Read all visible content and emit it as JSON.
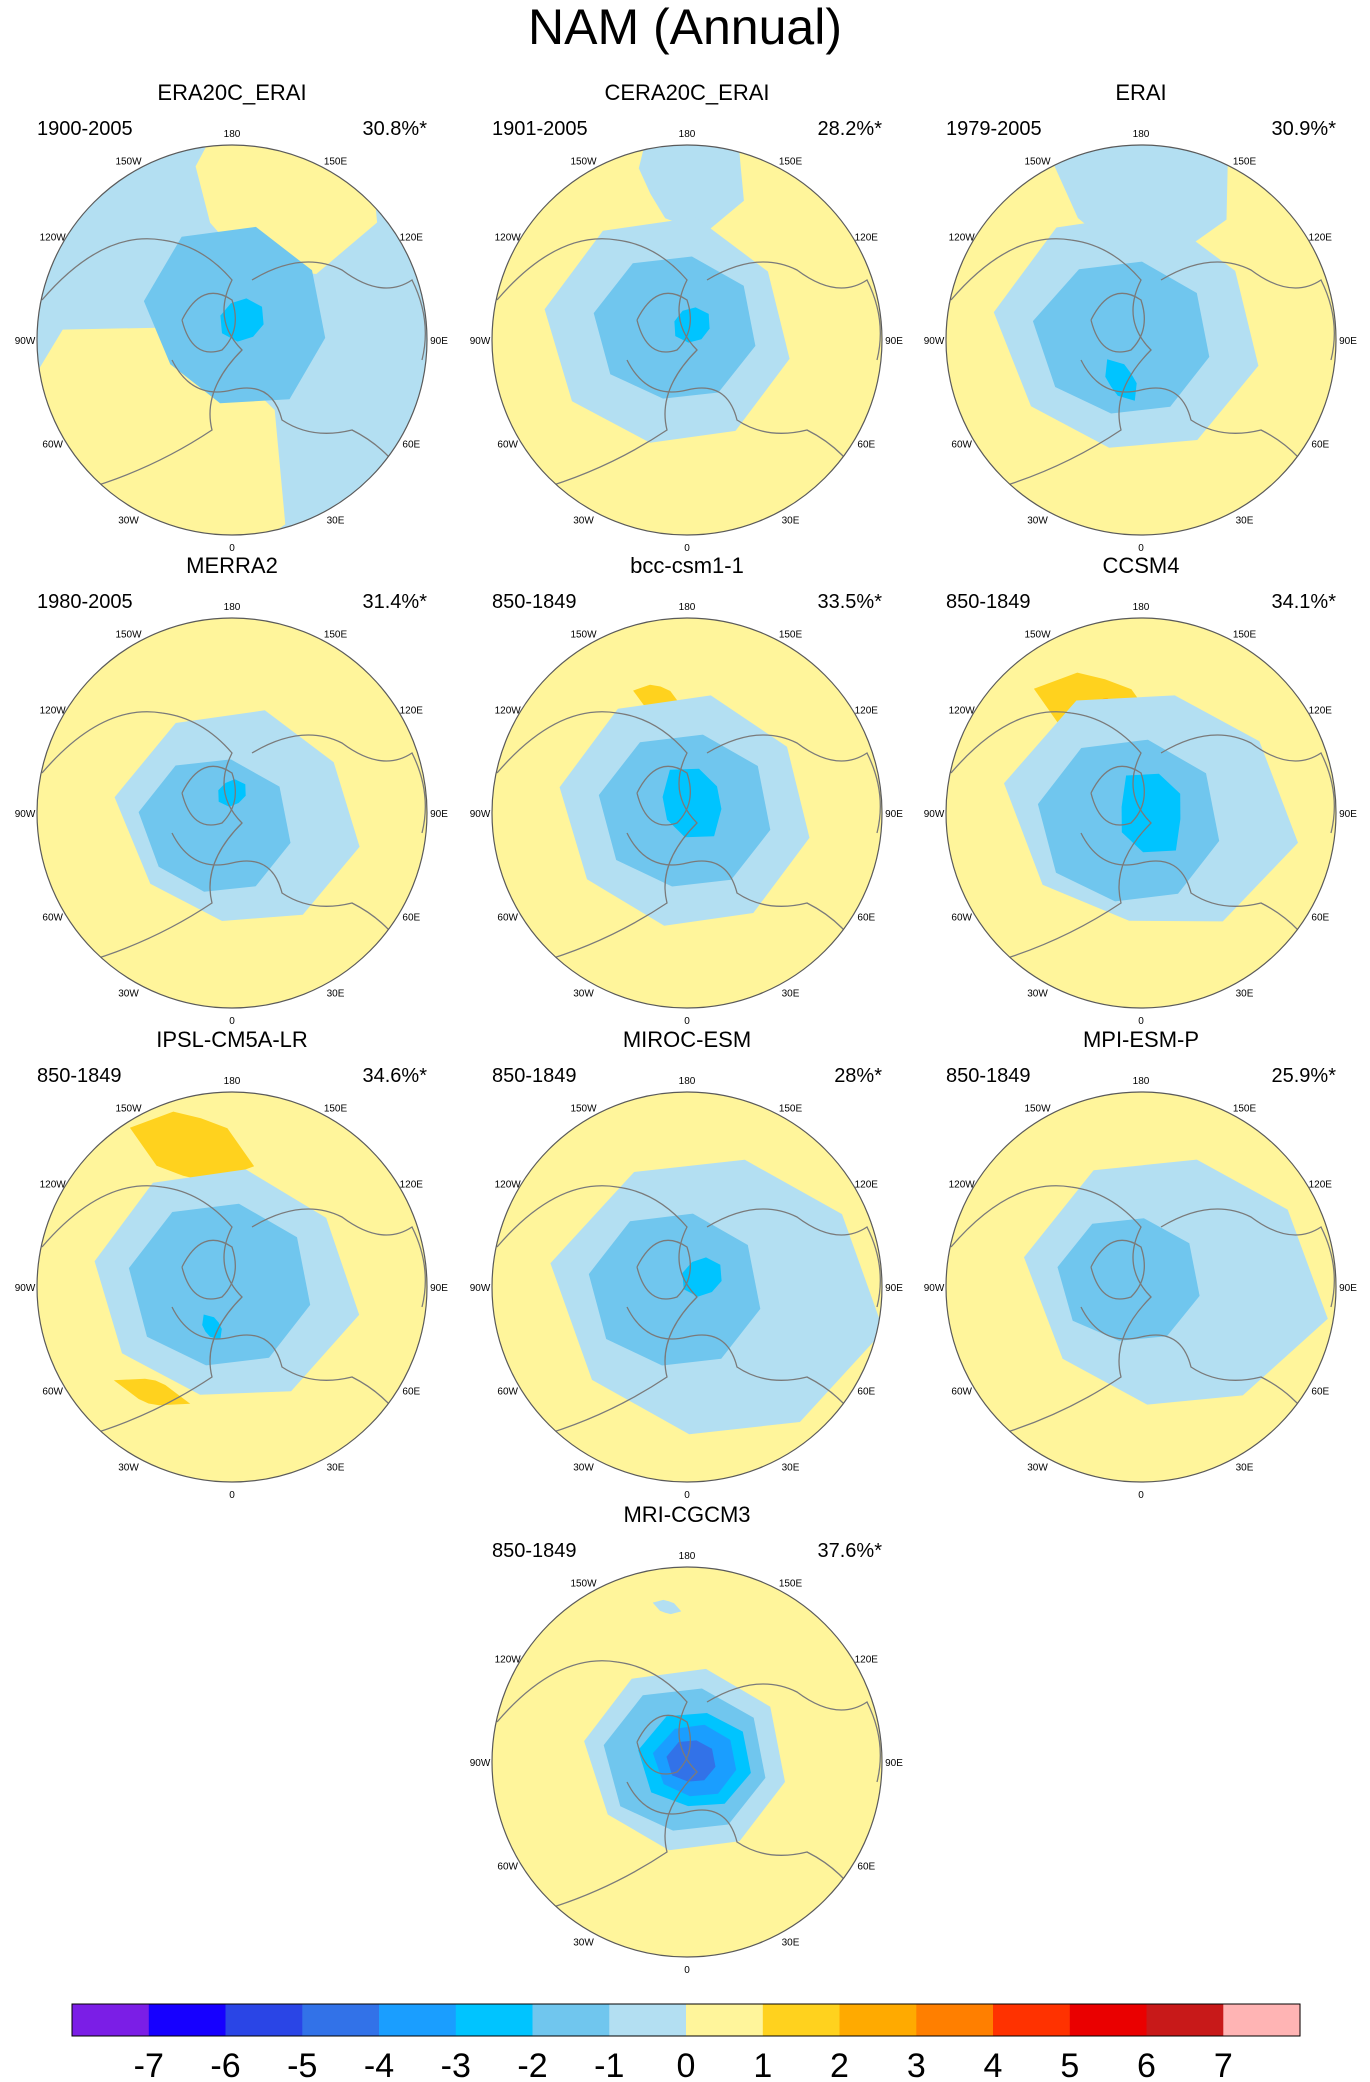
{
  "title": "NAM (Annual)",
  "colors": {
    "land": "#7a7a7a",
    "ring": "#5a5a5a",
    "c_m3": "#1a9eff",
    "c_m2": "#00c4ff",
    "c_m1": "#70c6ee",
    "c_0": "#b3dff2",
    "c_p1": "#fff59b",
    "c_p2": "#ffd21e",
    "c_p3": "#ffaa00",
    "c_m4": "#3272e8",
    "c_m5": "#2a45e6",
    "c_m6": "#1600ff"
  },
  "lon_labels": [
    "180",
    "150E",
    "120E",
    "90E",
    "60E",
    "30E",
    "0",
    "30W",
    "60W",
    "90W",
    "120W",
    "150W"
  ],
  "colorbar": {
    "labels": [
      "-7",
      "-6",
      "-5",
      "-4",
      "-3",
      "-2",
      "-1",
      "0",
      "1",
      "2",
      "3",
      "4",
      "5",
      "6",
      "7"
    ],
    "colors": [
      "#7b1ee6",
      "#1600ff",
      "#2a45e6",
      "#3272e8",
      "#1a9eff",
      "#00c4ff",
      "#70c6ee",
      "#b3dff2",
      "#fff59b",
      "#ffd21e",
      "#ffaa00",
      "#ff7f00",
      "#ff3200",
      "#ea0000",
      "#c81919",
      "#ffb4b4"
    ]
  },
  "chart_data": {
    "type": "map",
    "title": "NAM (Annual)",
    "panels": [
      {
        "name": "ERA20C_ERAI",
        "period": "1900-2005",
        "variance": "30.8%*",
        "dominant_background": "0 to -1",
        "min_level": "-3 to -2"
      },
      {
        "name": "CERA20C_ERAI",
        "period": "1901-2005",
        "variance": "28.2%*",
        "dominant_background": "0 to 1",
        "min_level": "-3 to -2"
      },
      {
        "name": "ERAI",
        "period": "1979-2005",
        "variance": "30.9%*",
        "dominant_background": "0 to 1",
        "min_level": "-3 to -2"
      },
      {
        "name": "MERRA2",
        "period": "1980-2005",
        "variance": "31.4%*",
        "dominant_background": "0 to 1",
        "min_level": "-3 to -2"
      },
      {
        "name": "bcc-csm1-1",
        "period": "850-1849",
        "variance": "33.5%*",
        "dominant_background": "0 to 1",
        "min_level": "-3 to -2"
      },
      {
        "name": "CCSM4",
        "period": "850-1849",
        "variance": "34.1%*",
        "dominant_background": "0 to 1",
        "min_level": "-3 to -2"
      },
      {
        "name": "IPSL-CM5A-LR",
        "period": "850-1849",
        "variance": "34.6%*",
        "dominant_background": "0 to 1",
        "min_level": "-3 to -2"
      },
      {
        "name": "MIROC-ESM",
        "period": "850-1849",
        "variance": "28%*",
        "dominant_background": "0 to 1",
        "min_level": "-3 to -2"
      },
      {
        "name": "MPI-ESM-P",
        "period": "850-1849",
        "variance": "25.9%*",
        "dominant_background": "0 to 1",
        "min_level": "-2 to -1"
      },
      {
        "name": "MRI-CGCM3",
        "period": "850-1849",
        "variance": "37.6%*",
        "dominant_background": "0 to 1",
        "min_level": "-5 to -4"
      }
    ],
    "colorbar_levels": [
      -7,
      -6,
      -5,
      -4,
      -3,
      -2,
      -1,
      0,
      1,
      2,
      3,
      4,
      5,
      6,
      7
    ]
  }
}
